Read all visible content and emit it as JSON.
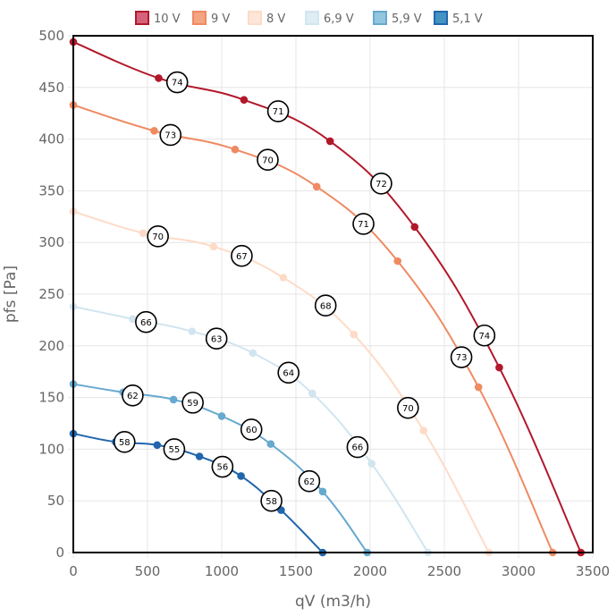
{
  "chart_data": {
    "type": "line",
    "title": "",
    "xlabel": "qV (m3/h)",
    "ylabel": "pfs [Pa]",
    "xlim": [
      0,
      3500
    ],
    "ylim": [
      0,
      500
    ],
    "xticks": [
      0,
      500,
      1000,
      1500,
      2000,
      2500,
      3000,
      3500
    ],
    "yticks": [
      0,
      50,
      100,
      150,
      200,
      250,
      300,
      350,
      400,
      450,
      500
    ],
    "grid": true,
    "legend_position": "top",
    "series": [
      {
        "name": "10 V",
        "color": "#b2182b",
        "fill": "#d6617a",
        "points": [
          [
            0,
            494
          ],
          [
            575,
            459
          ],
          [
            1150,
            438
          ],
          [
            1730,
            398
          ],
          [
            2300,
            315
          ],
          [
            2870,
            179
          ],
          [
            3420,
            0
          ]
        ],
        "annotations": [
          {
            "label": "74",
            "x": 700,
            "y": 455
          },
          {
            "label": "71",
            "x": 1380,
            "y": 427
          },
          {
            "label": "72",
            "x": 2075,
            "y": 357
          },
          {
            "label": "71",
            "x": 1955,
            "y": 318
          },
          {
            "label": "74",
            "x": 2770,
            "y": 210
          }
        ]
      },
      {
        "name": "9 V",
        "color": "#ef8a62",
        "fill": "#f4a582",
        "points": [
          [
            0,
            433
          ],
          [
            545,
            408
          ],
          [
            1090,
            390
          ],
          [
            1640,
            354
          ],
          [
            2185,
            282
          ],
          [
            2730,
            160
          ],
          [
            3230,
            0
          ]
        ],
        "annotations": [
          {
            "label": "73",
            "x": 655,
            "y": 404
          },
          {
            "label": "70",
            "x": 1310,
            "y": 380
          },
          {
            "label": "73",
            "x": 2615,
            "y": 189
          }
        ]
      },
      {
        "name": "8 V",
        "color": "#fddbc7",
        "fill": "#fde6d8",
        "points": [
          [
            0,
            330
          ],
          [
            470,
            309
          ],
          [
            945,
            296
          ],
          [
            1415,
            266
          ],
          [
            1890,
            211
          ],
          [
            2360,
            118
          ],
          [
            2800,
            0
          ]
        ],
        "annotations": [
          {
            "label": "70",
            "x": 570,
            "y": 306
          },
          {
            "label": "67",
            "x": 1135,
            "y": 287
          },
          {
            "label": "68",
            "x": 1700,
            "y": 239
          },
          {
            "label": "70",
            "x": 2255,
            "y": 140
          }
        ]
      },
      {
        "name": "6,9 V",
        "color": "#d1e5f0",
        "fill": "#deecf4",
        "points": [
          [
            0,
            238
          ],
          [
            400,
            226
          ],
          [
            800,
            214
          ],
          [
            1210,
            193
          ],
          [
            1610,
            154
          ],
          [
            2010,
            86
          ],
          [
            2390,
            0
          ]
        ],
        "annotations": [
          {
            "label": "66",
            "x": 490,
            "y": 223
          },
          {
            "label": "63",
            "x": 965,
            "y": 207
          },
          {
            "label": "64",
            "x": 1450,
            "y": 174
          },
          {
            "label": "66",
            "x": 1915,
            "y": 102
          }
        ]
      },
      {
        "name": "5,9 V",
        "color": "#67a9cf",
        "fill": "#92c5de",
        "points": [
          [
            0,
            163
          ],
          [
            335,
            155
          ],
          [
            675,
            148
          ],
          [
            1000,
            132
          ],
          [
            1330,
            105
          ],
          [
            1680,
            59
          ],
          [
            1980,
            0
          ]
        ],
        "annotations": [
          {
            "label": "62",
            "x": 400,
            "y": 152
          },
          {
            "label": "59",
            "x": 805,
            "y": 145
          },
          {
            "label": "60",
            "x": 1200,
            "y": 119
          },
          {
            "label": "62",
            "x": 1590,
            "y": 69
          }
        ]
      },
      {
        "name": "5,1 V",
        "color": "#2166ac",
        "fill": "#4393c3",
        "points": [
          [
            0,
            115
          ],
          [
            285,
            107
          ],
          [
            565,
            104
          ],
          [
            850,
            93
          ],
          [
            1130,
            74
          ],
          [
            1400,
            41
          ],
          [
            1680,
            0
          ]
        ],
        "annotations": [
          {
            "label": "58",
            "x": 345,
            "y": 107
          },
          {
            "label": "55",
            "x": 680,
            "y": 100
          },
          {
            "label": "56",
            "x": 1005,
            "y": 83
          },
          {
            "label": "58",
            "x": 1335,
            "y": 50
          }
        ]
      }
    ]
  }
}
